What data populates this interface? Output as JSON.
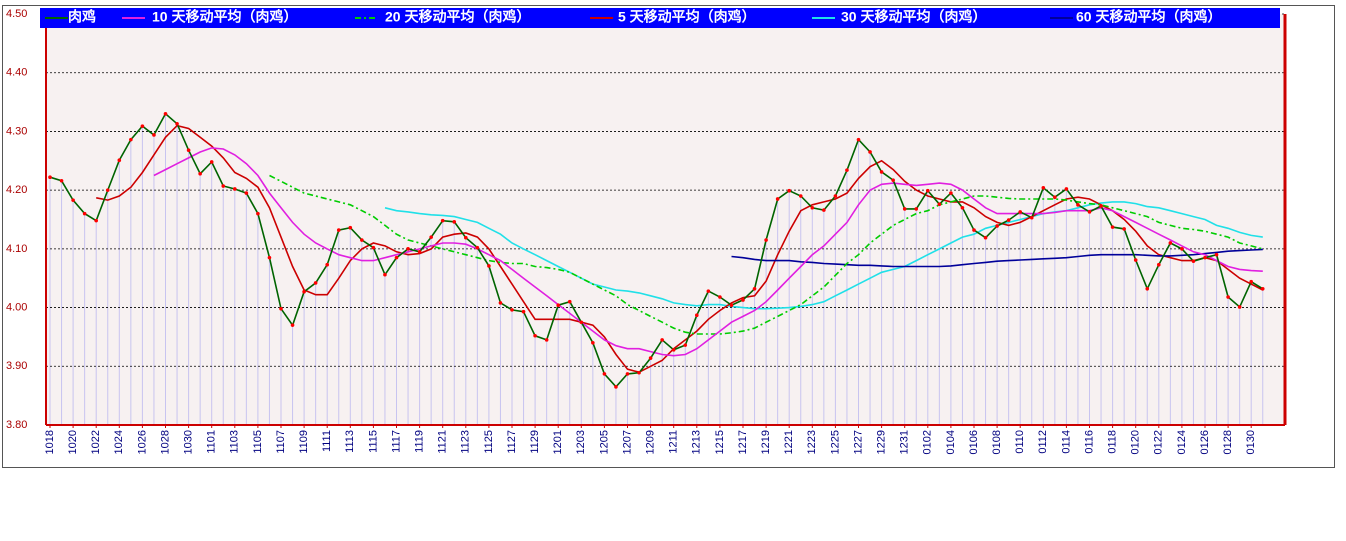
{
  "chart_data": {
    "type": "line",
    "categories": [
      "1018",
      null,
      "1020",
      null,
      "1022",
      null,
      "1024",
      null,
      "1026",
      null,
      "1028",
      null,
      "1030",
      null,
      "1101",
      null,
      "1103",
      null,
      "1105",
      null,
      "1107",
      null,
      "1109",
      null,
      "1111",
      null,
      "1113",
      null,
      "1115",
      null,
      "1117",
      null,
      "1119",
      null,
      "1121",
      null,
      "1123",
      null,
      "1125",
      null,
      "1127",
      null,
      "1129",
      null,
      "1201",
      null,
      "1203",
      null,
      "1205",
      null,
      "1207",
      null,
      "1209",
      null,
      "1211",
      null,
      "1213",
      null,
      "1215",
      null,
      "1217",
      null,
      "1219",
      null,
      "1221",
      null,
      "1223",
      null,
      "1225",
      null,
      "1227",
      null,
      "1229",
      null,
      "1231",
      null,
      "0102",
      null,
      "0104",
      null,
      "0106",
      null,
      "0108",
      null,
      "0110",
      null,
      "0112",
      null,
      "0114",
      null,
      "0116",
      null,
      "0118",
      null,
      "0120",
      null,
      "0122",
      null,
      "0124",
      null,
      "0126",
      null,
      "0128",
      null,
      "0130",
      null
    ],
    "series": [
      {
        "name": "肉鸡",
        "color": "#006400",
        "marker_color": "#ff0000",
        "drop_line_color": "#c8c4f0",
        "style": "solid",
        "values": [
          4.222,
          4.216,
          4.183,
          4.16,
          4.148,
          4.2,
          4.251,
          4.286,
          4.309,
          4.294,
          4.33,
          4.313,
          4.268,
          4.228,
          4.248,
          4.207,
          4.202,
          4.195,
          4.16,
          4.085,
          3.998,
          3.97,
          4.027,
          4.042,
          4.073,
          4.132,
          4.136,
          4.115,
          4.102,
          4.056,
          4.085,
          4.1,
          4.095,
          4.12,
          4.148,
          4.146,
          4.119,
          4.102,
          4.071,
          4.008,
          3.996,
          3.993,
          3.952,
          3.945,
          4.004,
          4.01,
          3.975,
          3.94,
          3.887,
          3.865,
          3.887,
          3.889,
          3.914,
          3.945,
          3.928,
          3.936,
          3.987,
          4.028,
          4.018,
          4.004,
          4.013,
          4.032,
          4.115,
          4.185,
          4.199,
          4.19,
          4.17,
          4.166,
          4.19,
          4.234,
          4.286,
          4.265,
          4.231,
          4.217,
          4.168,
          4.168,
          4.199,
          4.176,
          4.195,
          4.17,
          4.132,
          4.119,
          4.139,
          4.149,
          4.163,
          4.153,
          4.204,
          4.188,
          4.202,
          4.175,
          4.163,
          4.173,
          4.137,
          4.134,
          4.081,
          4.032,
          4.073,
          4.11,
          4.1,
          4.079,
          4.085,
          4.09,
          4.018,
          4.001,
          4.044,
          4.032
        ]
      },
      {
        "name": "10 天移动平均（肉鸡）",
        "color": "#e020e0",
        "style": "solid",
        "values": [
          null,
          null,
          null,
          null,
          null,
          null,
          null,
          null,
          null,
          4.225,
          4.235,
          4.245,
          4.255,
          4.265,
          4.272,
          4.27,
          4.26,
          4.245,
          4.225,
          4.195,
          4.17,
          4.145,
          4.125,
          4.11,
          4.1,
          4.09,
          4.085,
          4.08,
          4.08,
          4.085,
          4.09,
          4.095,
          4.1,
          4.105,
          4.11,
          4.11,
          4.108,
          4.1,
          4.09,
          4.08,
          4.065,
          4.05,
          4.035,
          4.02,
          4.005,
          3.99,
          3.975,
          3.96,
          3.945,
          3.935,
          3.93,
          3.93,
          3.925,
          3.92,
          3.918,
          3.92,
          3.93,
          3.945,
          3.96,
          3.975,
          3.985,
          3.995,
          4.01,
          4.03,
          4.05,
          4.07,
          4.09,
          4.105,
          4.125,
          4.145,
          4.175,
          4.2,
          4.21,
          4.212,
          4.21,
          4.208,
          4.21,
          4.212,
          4.21,
          4.2,
          4.185,
          4.17,
          4.16,
          4.16,
          4.16,
          4.16,
          4.16,
          4.162,
          4.165,
          4.165,
          4.165,
          4.17,
          4.165,
          4.155,
          4.145,
          4.135,
          4.125,
          4.115,
          4.105,
          4.095,
          4.09,
          4.08,
          4.07,
          4.065,
          4.063,
          4.062
        ]
      },
      {
        "name": "20 天移动平均（肉鸡）",
        "color": "#00cc00",
        "style": "dash-dot",
        "values": [
          null,
          null,
          null,
          null,
          null,
          null,
          null,
          null,
          null,
          null,
          null,
          null,
          null,
          null,
          null,
          null,
          null,
          null,
          null,
          4.225,
          4.215,
          4.205,
          4.195,
          4.19,
          4.185,
          4.18,
          4.175,
          4.165,
          4.155,
          4.14,
          4.125,
          4.115,
          4.11,
          4.105,
          4.1,
          4.095,
          4.09,
          4.085,
          4.08,
          4.077,
          4.075,
          4.075,
          4.07,
          4.068,
          4.065,
          4.06,
          4.05,
          4.04,
          4.03,
          4.02,
          4.005,
          3.995,
          3.985,
          3.975,
          3.965,
          3.958,
          3.955,
          3.955,
          3.955,
          3.957,
          3.96,
          3.965,
          3.975,
          3.985,
          3.995,
          4.005,
          4.02,
          4.035,
          4.055,
          4.075,
          4.09,
          4.11,
          4.125,
          4.14,
          4.15,
          4.16,
          4.165,
          4.175,
          4.18,
          4.185,
          4.19,
          4.19,
          4.188,
          4.186,
          4.185,
          4.185,
          4.185,
          4.185,
          4.183,
          4.18,
          4.177,
          4.175,
          4.17,
          4.165,
          4.16,
          4.155,
          4.145,
          4.14,
          4.135,
          4.133,
          4.13,
          4.125,
          4.12,
          4.11,
          4.105,
          4.1
        ]
      },
      {
        "name": "5 天移动平均（肉鸡）",
        "color": "#cc0000",
        "style": "solid",
        "values": [
          null,
          null,
          null,
          null,
          4.187,
          4.183,
          4.19,
          4.205,
          4.23,
          4.26,
          4.29,
          4.31,
          4.305,
          4.29,
          4.275,
          4.255,
          4.23,
          4.22,
          4.205,
          4.17,
          4.12,
          4.07,
          4.03,
          4.022,
          4.022,
          4.05,
          4.08,
          4.1,
          4.11,
          4.105,
          4.095,
          4.09,
          4.092,
          4.1,
          4.12,
          4.125,
          4.127,
          4.12,
          4.1,
          4.07,
          4.04,
          4.01,
          3.98,
          3.98,
          3.98,
          3.98,
          3.975,
          3.97,
          3.95,
          3.92,
          3.895,
          3.89,
          3.9,
          3.91,
          3.93,
          3.945,
          3.96,
          3.98,
          3.995,
          4.008,
          4.017,
          4.02,
          4.045,
          4.09,
          4.13,
          4.165,
          4.175,
          4.18,
          4.185,
          4.195,
          4.22,
          4.24,
          4.25,
          4.235,
          4.215,
          4.2,
          4.19,
          4.185,
          4.18,
          4.18,
          4.17,
          4.155,
          4.145,
          4.14,
          4.145,
          4.155,
          4.165,
          4.175,
          4.185,
          4.188,
          4.185,
          4.175,
          4.165,
          4.15,
          4.13,
          4.105,
          4.09,
          4.085,
          4.08,
          4.08,
          4.085,
          4.08,
          4.065,
          4.05,
          4.04,
          4.03
        ]
      },
      {
        "name": "30 天移动平均（肉鸡）",
        "color": "#20e0e8",
        "style": "solid",
        "values": [
          null,
          null,
          null,
          null,
          null,
          null,
          null,
          null,
          null,
          null,
          null,
          null,
          null,
          null,
          null,
          null,
          null,
          null,
          null,
          null,
          null,
          null,
          null,
          null,
          null,
          null,
          null,
          null,
          null,
          4.17,
          4.165,
          4.163,
          4.16,
          4.158,
          4.157,
          4.155,
          4.15,
          4.145,
          4.135,
          4.125,
          4.11,
          4.1,
          4.09,
          4.08,
          4.07,
          4.06,
          4.05,
          4.04,
          4.035,
          4.03,
          4.028,
          4.025,
          4.02,
          4.015,
          4.008,
          4.005,
          4.003,
          4.005,
          4.005,
          4.002,
          4.0,
          3.998,
          3.998,
          3.999,
          4.0,
          4.002,
          4.005,
          4.01,
          4.02,
          4.03,
          4.04,
          4.05,
          4.06,
          4.065,
          4.07,
          4.08,
          4.09,
          4.1,
          4.11,
          4.12,
          4.125,
          4.135,
          4.14,
          4.145,
          4.15,
          4.155,
          4.16,
          4.163,
          4.165,
          4.17,
          4.175,
          4.178,
          4.18,
          4.18,
          4.177,
          4.172,
          4.17,
          4.165,
          4.16,
          4.155,
          4.15,
          4.14,
          4.135,
          4.128,
          4.123,
          4.12
        ]
      },
      {
        "name": "60 天移动平均（肉鸡）",
        "color": "#000099",
        "style": "solid",
        "values": [
          null,
          null,
          null,
          null,
          null,
          null,
          null,
          null,
          null,
          null,
          null,
          null,
          null,
          null,
          null,
          null,
          null,
          null,
          null,
          null,
          null,
          null,
          null,
          null,
          null,
          null,
          null,
          null,
          null,
          null,
          null,
          null,
          null,
          null,
          null,
          null,
          null,
          null,
          null,
          null,
          null,
          null,
          null,
          null,
          null,
          null,
          null,
          null,
          null,
          null,
          null,
          null,
          null,
          null,
          null,
          null,
          null,
          null,
          null,
          4.087,
          4.085,
          4.082,
          4.08,
          4.08,
          4.08,
          4.078,
          4.077,
          4.075,
          4.074,
          4.073,
          4.072,
          4.072,
          4.071,
          4.07,
          4.07,
          4.07,
          4.07,
          4.07,
          4.071,
          4.073,
          4.075,
          4.077,
          4.079,
          4.08,
          4.081,
          4.082,
          4.083,
          4.084,
          4.085,
          4.087,
          4.089,
          4.09,
          4.09,
          4.09,
          4.09,
          4.089,
          4.088,
          4.088,
          4.089,
          4.09,
          4.092,
          4.094,
          4.096,
          4.097,
          4.098,
          4.099
        ]
      }
    ],
    "ylim": [
      3.8,
      4.5
    ],
    "yticks": [
      {
        "value": 3.8,
        "label": "3.80"
      },
      {
        "value": 3.9,
        "label": "3.90"
      },
      {
        "value": 4.0,
        "label": "4.00"
      },
      {
        "value": 4.1,
        "label": "4.10"
      },
      {
        "value": 4.2,
        "label": "4.20"
      },
      {
        "value": 4.3,
        "label": "4.30"
      },
      {
        "value": 4.4,
        "label": "4.40"
      },
      {
        "value": 4.5,
        "label": "4.50"
      }
    ],
    "grid": true,
    "legend": "top"
  }
}
